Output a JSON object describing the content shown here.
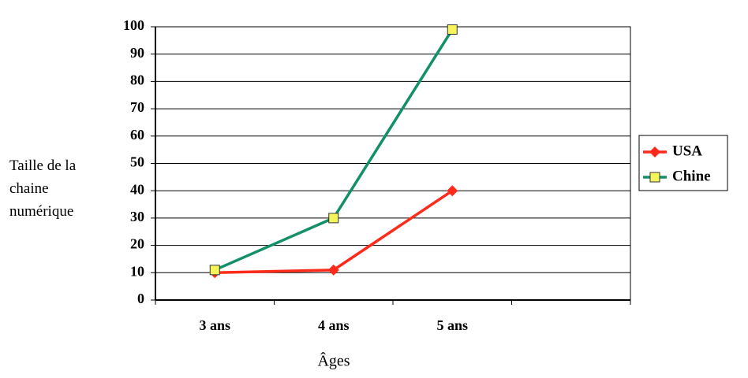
{
  "chart_data": {
    "type": "line",
    "categories": [
      "3 ans",
      "4 ans",
      "5 ans",
      null
    ],
    "series": [
      {
        "name": "USA",
        "color": "#ff2a1a",
        "marker": "diamond",
        "values": [
          10,
          11,
          40,
          null
        ]
      },
      {
        "name": "Chine",
        "color": "#139069",
        "marker": "square",
        "marker_color": "#f5f55a",
        "values": [
          11,
          30,
          99,
          null
        ]
      }
    ],
    "ylim": [
      0,
      100
    ],
    "yticks": [
      0,
      10,
      20,
      30,
      40,
      50,
      60,
      70,
      80,
      90,
      100
    ],
    "grid": true,
    "legend": "right",
    "xlabel": "Âges",
    "ylabel": "Taille de la chaine numérique"
  }
}
